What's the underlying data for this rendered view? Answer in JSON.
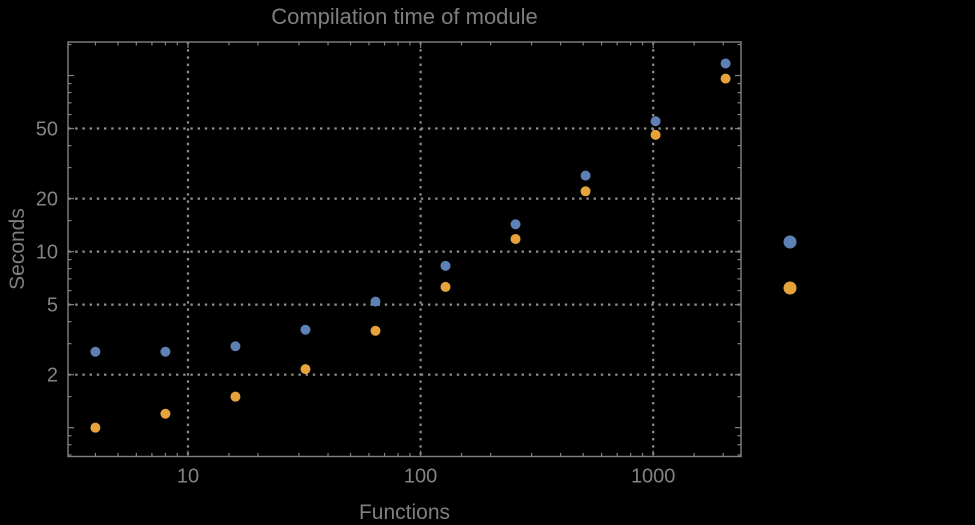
{
  "window": {
    "background": "#000000"
  },
  "chart_data": {
    "type": "scatter",
    "title": "Compilation time of module",
    "xlabel": "Functions",
    "ylabel": "Seconds",
    "xscale": "log",
    "yscale": "log",
    "xlim": [
      3.05,
      2385
    ],
    "ylim": [
      0.686,
      155
    ],
    "grid": {
      "style": "dotted",
      "x_values": [
        10,
        100,
        1000
      ],
      "y_values": [
        2,
        5,
        10,
        20,
        50
      ]
    },
    "x_ticks": {
      "values": [
        10,
        100,
        1000
      ],
      "labels": [
        "10",
        "100",
        "1000"
      ],
      "unlabeled_major": []
    },
    "y_ticks": {
      "values": [
        2,
        5,
        10,
        20,
        50
      ],
      "labels": [
        "2",
        "5",
        "10",
        "20",
        "50"
      ],
      "unlabeled_major": [
        1,
        100
      ]
    },
    "x": [
      4,
      8,
      16,
      32,
      64,
      128,
      256,
      512,
      1024,
      2048
    ],
    "series": [
      {
        "name": "series-1-blue",
        "color": "#5E81B5",
        "values": [
          2.7,
          2.7,
          2.9,
          3.6,
          5.2,
          8.3,
          14.3,
          27,
          55,
          117
        ]
      },
      {
        "name": "series-2-orange",
        "color": "#E6A33C",
        "values": [
          1.0,
          1.2,
          1.5,
          2.15,
          3.55,
          6.3,
          11.8,
          22,
          46,
          96
        ]
      }
    ],
    "legend": {
      "position": "outside-right",
      "labels_visible": false,
      "markers": [
        {
          "color": "#5E81B5",
          "label": ""
        },
        {
          "color": "#E6A33C",
          "label": ""
        }
      ]
    },
    "colors": {
      "axis_text": "#7f7f7f",
      "grid": "#8f8f8f",
      "frame": "#828282"
    }
  }
}
